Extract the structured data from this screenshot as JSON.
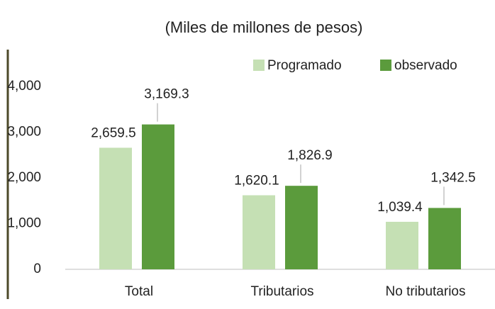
{
  "chart_data": {
    "type": "bar",
    "title": "(Miles de millones de pesos)",
    "categories": [
      "Total",
      "Tributarios",
      "No tributarios"
    ],
    "series": [
      {
        "name": "Programado",
        "color": "#c5e0b4",
        "values": [
          2659.5,
          1620.1,
          1039.4
        ],
        "value_labels": [
          "2,659.5",
          "1,620.1",
          "1,039.4"
        ]
      },
      {
        "name": "observado",
        "color": "#5b9b3c",
        "values": [
          3169.3,
          1826.9,
          1342.5
        ],
        "value_labels": [
          "3,169.3",
          "1,826.9",
          "1,342.5"
        ]
      }
    ],
    "ylim": [
      0,
      4000
    ],
    "yticks": [
      0,
      {
        "value": 1000,
        "label": "1,000"
      },
      {
        "value": 2000,
        "label": "2,000"
      },
      {
        "value": 3000,
        "label": "3,000"
      },
      {
        "value": 4000,
        "label": "4,000"
      }
    ],
    "legend": "top-right"
  }
}
